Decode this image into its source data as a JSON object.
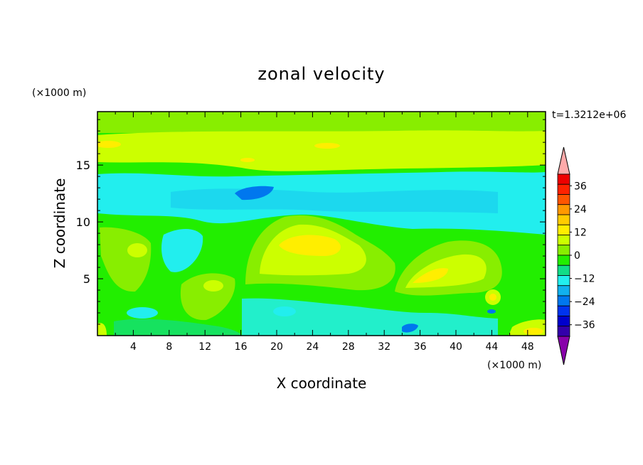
{
  "chart_data": {
    "type": "heatmap",
    "title": "zonal velocity",
    "xlabel": "X coordinate",
    "ylabel": "Z coordinate",
    "x_unit": "(×1000 m)",
    "y_unit": "(×1000 m)",
    "time_label": "t=1.3212e+06",
    "xlim": [
      0,
      50
    ],
    "ylim": [
      0,
      19.7
    ],
    "x_ticks": [
      4,
      8,
      12,
      16,
      20,
      24,
      28,
      32,
      36,
      40,
      44,
      48
    ],
    "y_ticks": [
      5,
      10,
      15
    ],
    "colorbar": {
      "levels": [
        -42,
        -36,
        -30,
        -24,
        -18,
        -12,
        -6,
        0,
        6,
        12,
        18,
        24,
        30,
        36,
        42
      ],
      "tick_labels": [
        36,
        24,
        12,
        0,
        -12,
        -24,
        -36
      ],
      "colors": [
        "#7700aa",
        "#3300aa",
        "#0000cc",
        "#0033ee",
        "#0077ee",
        "#11b0ee",
        "#22eeee",
        "#11dd88",
        "#22ee00",
        "#88ee00",
        "#ccff00",
        "#ffee00",
        "#ffcc00",
        "#ff9900",
        "#ff5500",
        "#ff2200",
        "#ee0000",
        "#ffaaaa"
      ],
      "under_color": "#8800aa",
      "over_color": "#ffaaaa"
    },
    "grid": false,
    "legend": "right"
  }
}
